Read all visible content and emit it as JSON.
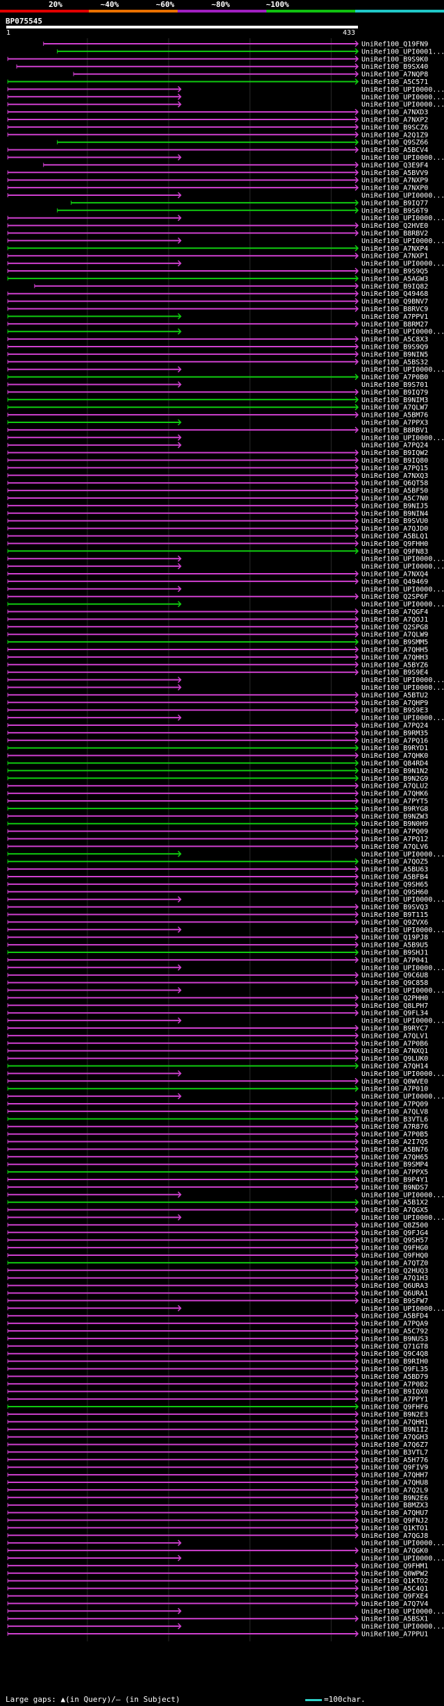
{
  "identity_scale": {
    "labels": [
      "20%",
      "~40%",
      "~60%",
      "~80%",
      "~100%"
    ],
    "segment_colors": [
      "#e00000",
      "#e87000",
      "#a020c0",
      "#10c010",
      "#20c8c8"
    ]
  },
  "query": {
    "name": "BP075545",
    "start": "1",
    "end": "433",
    "length": 433
  },
  "colors": {
    "magenta": "#d040d0",
    "green": "#10cc10",
    "grid": "#2a2a2a",
    "label": "#ffffff"
  },
  "hits": [
    {
      "id": "UniRef100_Q19FN9",
      "s": 46,
      "e": 433,
      "c": "m"
    },
    {
      "id": "UniRef100_UPI0001...",
      "s": 63,
      "e": 433,
      "c": "g"
    },
    {
      "id": "UniRef100_B9S9K0",
      "s": 2,
      "e": 433,
      "c": "m"
    },
    {
      "id": "UniRef100_B9SX40",
      "s": 13,
      "e": 433,
      "c": "m"
    },
    {
      "id": "UniRef100_A7NQP8",
      "s": 83,
      "e": 433,
      "c": "m"
    },
    {
      "id": "UniRef100_A5C571",
      "s": 2,
      "e": 433,
      "c": "g"
    },
    {
      "id": "UniRef100_UPI0000...",
      "s": 2,
      "e": 215,
      "c": "m"
    },
    {
      "id": "UniRef100_UPI0000...",
      "s": 2,
      "e": 215,
      "c": "m"
    },
    {
      "id": "UniRef100_UPI0000...",
      "s": 2,
      "e": 215,
      "c": "m"
    },
    {
      "id": "UniRef100_A7NXD3",
      "s": 2,
      "e": 433,
      "c": "m"
    },
    {
      "id": "UniRef100_A7NXP2",
      "s": 2,
      "e": 433,
      "c": "m"
    },
    {
      "id": "UniRef100_B9SCZ6",
      "s": 2,
      "e": 433,
      "c": "m"
    },
    {
      "id": "UniRef100_A2Q1Z9",
      "s": 2,
      "e": 433,
      "c": "m"
    },
    {
      "id": "UniRef100_Q9SZ66",
      "s": 63,
      "e": 433,
      "c": "g"
    },
    {
      "id": "UniRef100_A5BCV4",
      "s": 2,
      "e": 433,
      "c": "m"
    },
    {
      "id": "UniRef100_UPI0000...",
      "s": 2,
      "e": 215,
      "c": "m"
    },
    {
      "id": "UniRef100_Q3E9F4",
      "s": 46,
      "e": 433,
      "c": "m"
    },
    {
      "id": "UniRef100_A5BVV9",
      "s": 2,
      "e": 433,
      "c": "m"
    },
    {
      "id": "UniRef100_A7NXP9",
      "s": 2,
      "e": 433,
      "c": "m"
    },
    {
      "id": "UniRef100_A7NXP0",
      "s": 2,
      "e": 433,
      "c": "m"
    },
    {
      "id": "UniRef100_UPI0000...",
      "s": 2,
      "e": 215,
      "c": "m"
    },
    {
      "id": "UniRef100_B9IQ77",
      "s": 80,
      "e": 433,
      "c": "g"
    },
    {
      "id": "UniRef100_B9S6T9",
      "s": 63,
      "e": 433,
      "c": "g"
    },
    {
      "id": "UniRef100_UPI0000...",
      "s": 2,
      "e": 215,
      "c": "m"
    },
    {
      "id": "UniRef100_Q2HVE0",
      "s": 2,
      "e": 433,
      "c": "m"
    },
    {
      "id": "UniRef100_B8RBV2",
      "s": 2,
      "e": 433,
      "c": "m"
    },
    {
      "id": "UniRef100_UPI0000...",
      "s": 2,
      "e": 215,
      "c": "m"
    },
    {
      "id": "UniRef100_A7NXP4",
      "s": 2,
      "e": 433,
      "c": "g"
    },
    {
      "id": "UniRef100_A7NXP1",
      "s": 2,
      "e": 433,
      "c": "m"
    },
    {
      "id": "UniRef100_UPI0000...",
      "s": 2,
      "e": 215,
      "c": "m"
    },
    {
      "id": "UniRef100_B9S9Q5",
      "s": 2,
      "e": 433,
      "c": "m"
    },
    {
      "id": "UniRef100_A5AGW3",
      "s": 2,
      "e": 433,
      "c": "g"
    },
    {
      "id": "UniRef100_B9IQ82",
      "s": 35,
      "e": 433,
      "c": "m"
    },
    {
      "id": "UniRef100_Q49468",
      "s": 2,
      "e": 433,
      "c": "m"
    },
    {
      "id": "UniRef100_Q9BNV7",
      "s": 2,
      "e": 433,
      "c": "m"
    },
    {
      "id": "UniRef100_B8RVC9",
      "s": 2,
      "e": 433,
      "c": "m"
    },
    {
      "id": "UniRef100_A7PPV1",
      "s": 2,
      "e": 215,
      "c": "g"
    },
    {
      "id": "UniRef100_B8RM27",
      "s": 2,
      "e": 433,
      "c": "m"
    },
    {
      "id": "UniRef100_UPI0000...",
      "s": 2,
      "e": 215,
      "c": "g"
    },
    {
      "id": "UniRef100_A5C8X3",
      "s": 2,
      "e": 433,
      "c": "m"
    },
    {
      "id": "UniRef100_B9S9Q9",
      "s": 2,
      "e": 433,
      "c": "m"
    },
    {
      "id": "UniRef100_B9NIN5",
      "s": 2,
      "e": 433,
      "c": "m"
    },
    {
      "id": "UniRef100_A5BS32",
      "s": 2,
      "e": 433,
      "c": "m"
    },
    {
      "id": "UniRef100_UPI0000...",
      "s": 2,
      "e": 215,
      "c": "m"
    },
    {
      "id": "UniRef100_A7P0B0",
      "s": 2,
      "e": 433,
      "c": "g"
    },
    {
      "id": "UniRef100_B9S701",
      "s": 2,
      "e": 215,
      "c": "m"
    },
    {
      "id": "UniRef100_B9IQ79",
      "s": 2,
      "e": 433,
      "c": "m"
    },
    {
      "id": "UniRef100_B9NIM3",
      "s": 2,
      "e": 433,
      "c": "g"
    },
    {
      "id": "UniRef100_A7QLW7",
      "s": 2,
      "e": 433,
      "c": "g"
    },
    {
      "id": "UniRef100_A5BM76",
      "s": 2,
      "e": 433,
      "c": "m"
    },
    {
      "id": "UniRef100_A7PPX3",
      "s": 2,
      "e": 215,
      "c": "g"
    },
    {
      "id": "UniRef100_B8RBV1",
      "s": 2,
      "e": 433,
      "c": "m"
    },
    {
      "id": "UniRef100_UPI0000...",
      "s": 2,
      "e": 215,
      "c": "m"
    },
    {
      "id": "UniRef100_A7PQ24",
      "s": 2,
      "e": 215,
      "c": "m"
    },
    {
      "id": "UniRef100_B9IQW2",
      "s": 2,
      "e": 433,
      "c": "m"
    },
    {
      "id": "UniRef100_B9IQ80",
      "s": 2,
      "e": 433,
      "c": "m"
    },
    {
      "id": "UniRef100_A7PQ15",
      "s": 2,
      "e": 433,
      "c": "m"
    },
    {
      "id": "UniRef100_A7NXQ3",
      "s": 2,
      "e": 433,
      "c": "m"
    },
    {
      "id": "UniRef100_Q6QT58",
      "s": 2,
      "e": 433,
      "c": "m"
    },
    {
      "id": "UniRef100_A5BF50",
      "s": 2,
      "e": 433,
      "c": "m"
    },
    {
      "id": "UniRef100_A5C7N0",
      "s": 2,
      "e": 433,
      "c": "m"
    },
    {
      "id": "UniRef100_B9NIJ5",
      "s": 2,
      "e": 433,
      "c": "m"
    },
    {
      "id": "UniRef100_B9NIN4",
      "s": 2,
      "e": 433,
      "c": "m"
    },
    {
      "id": "UniRef100_B9SVU0",
      "s": 2,
      "e": 433,
      "c": "m"
    },
    {
      "id": "UniRef100_A7QJD0",
      "s": 2,
      "e": 433,
      "c": "m"
    },
    {
      "id": "UniRef100_A5BLQ1",
      "s": 2,
      "e": 433,
      "c": "m"
    },
    {
      "id": "UniRef100_Q9FHH0",
      "s": 2,
      "e": 433,
      "c": "m"
    },
    {
      "id": "UniRef100_Q9FN83",
      "s": 2,
      "e": 433,
      "c": "g"
    },
    {
      "id": "UniRef100_UPI0000...",
      "s": 2,
      "e": 215,
      "c": "m"
    },
    {
      "id": "UniRef100_UPI0000...",
      "s": 2,
      "e": 215,
      "c": "m"
    },
    {
      "id": "UniRef100_A7NXQ4",
      "s": 2,
      "e": 433,
      "c": "m"
    },
    {
      "id": "UniRef100_Q49469",
      "s": 2,
      "e": 433,
      "c": "m"
    },
    {
      "id": "UniRef100_UPI0000...",
      "s": 2,
      "e": 215,
      "c": "m"
    },
    {
      "id": "UniRef100_Q2SP6F",
      "s": 2,
      "e": 433,
      "c": "m"
    },
    {
      "id": "UniRef100_UPI0000...",
      "s": 2,
      "e": 215,
      "c": "g"
    },
    {
      "id": "UniRef100_A7QGF4",
      "s": 2,
      "e": 433,
      "c": "m"
    },
    {
      "id": "UniRef100_A7QOJ1",
      "s": 2,
      "e": 433,
      "c": "m"
    },
    {
      "id": "UniRef100_Q2SPG8",
      "s": 2,
      "e": 433,
      "c": "m"
    },
    {
      "id": "UniRef100_A7QLW9",
      "s": 2,
      "e": 433,
      "c": "m"
    },
    {
      "id": "UniRef100_B9SMM5",
      "s": 2,
      "e": 433,
      "c": "g"
    },
    {
      "id": "UniRef100_A7QHH5",
      "s": 2,
      "e": 433,
      "c": "m"
    },
    {
      "id": "UniRef100_A7QHH3",
      "s": 2,
      "e": 433,
      "c": "m"
    },
    {
      "id": "UniRef100_A5BYZ6",
      "s": 2,
      "e": 433,
      "c": "m"
    },
    {
      "id": "UniRef100_B9S9E4",
      "s": 2,
      "e": 433,
      "c": "m"
    },
    {
      "id": "UniRef100_UPI0000...",
      "s": 2,
      "e": 215,
      "c": "m"
    },
    {
      "id": "UniRef100_UPI0000...",
      "s": 2,
      "e": 215,
      "c": "m"
    },
    {
      "id": "UniRef100_A5BTU2",
      "s": 2,
      "e": 433,
      "c": "m"
    },
    {
      "id": "UniRef100_A7QHP9",
      "s": 2,
      "e": 433,
      "c": "m"
    },
    {
      "id": "UniRef100_B9S9E3",
      "s": 2,
      "e": 433,
      "c": "m"
    },
    {
      "id": "UniRef100_UPI0000...",
      "s": 2,
      "e": 215,
      "c": "m"
    },
    {
      "id": "UniRef100_A7PQ24",
      "s": 2,
      "e": 433,
      "c": "m"
    },
    {
      "id": "UniRef100_B9RM35",
      "s": 2,
      "e": 433,
      "c": "m"
    },
    {
      "id": "UniRef100_A7PQ16",
      "s": 2,
      "e": 433,
      "c": "m"
    },
    {
      "id": "UniRef100_B9RYD1",
      "s": 2,
      "e": 433,
      "c": "g"
    },
    {
      "id": "UniRef100_A7QHK0",
      "s": 2,
      "e": 433,
      "c": "m"
    },
    {
      "id": "UniRef100_Q84RD4",
      "s": 2,
      "e": 433,
      "c": "g"
    },
    {
      "id": "UniRef100_B9N1N2",
      "s": 2,
      "e": 433,
      "c": "g"
    },
    {
      "id": "UniRef100_B9N2G9",
      "s": 2,
      "e": 433,
      "c": "g"
    },
    {
      "id": "UniRef100_A7QLU2",
      "s": 2,
      "e": 433,
      "c": "m"
    },
    {
      "id": "UniRef100_A7QHK6",
      "s": 2,
      "e": 433,
      "c": "m"
    },
    {
      "id": "UniRef100_A7PYT5",
      "s": 2,
      "e": 433,
      "c": "m"
    },
    {
      "id": "UniRef100_B9RYG8",
      "s": 2,
      "e": 433,
      "c": "g"
    },
    {
      "id": "UniRef100_B9NZW3",
      "s": 2,
      "e": 433,
      "c": "m"
    },
    {
      "id": "UniRef100_B9N0H9",
      "s": 2,
      "e": 433,
      "c": "g"
    },
    {
      "id": "UniRef100_A7PQ09",
      "s": 2,
      "e": 433,
      "c": "m"
    },
    {
      "id": "UniRef100_A7PQ12",
      "s": 2,
      "e": 433,
      "c": "m"
    },
    {
      "id": "UniRef100_A7QLV6",
      "s": 2,
      "e": 433,
      "c": "m"
    },
    {
      "id": "UniRef100_UPI0000...",
      "s": 2,
      "e": 215,
      "c": "g"
    },
    {
      "id": "UniRef100_A7QOZ5",
      "s": 2,
      "e": 433,
      "c": "g"
    },
    {
      "id": "UniRef100_A5BU63",
      "s": 2,
      "e": 433,
      "c": "m"
    },
    {
      "id": "UniRef100_A5BFB4",
      "s": 2,
      "e": 433,
      "c": "m"
    },
    {
      "id": "UniRef100_Q9SH65",
      "s": 2,
      "e": 433,
      "c": "m"
    },
    {
      "id": "UniRef100_Q9SH60",
      "s": 2,
      "e": 433,
      "c": "m"
    },
    {
      "id": "UniRef100_UPI0000...",
      "s": 2,
      "e": 215,
      "c": "m"
    },
    {
      "id": "UniRef100_B9SVQ3",
      "s": 2,
      "e": 433,
      "c": "m"
    },
    {
      "id": "UniRef100_B9T115",
      "s": 2,
      "e": 433,
      "c": "m"
    },
    {
      "id": "UniRef100_Q9ZVX6",
      "s": 2,
      "e": 433,
      "c": "m"
    },
    {
      "id": "UniRef100_UPI0000...",
      "s": 2,
      "e": 215,
      "c": "m"
    },
    {
      "id": "UniRef100_Q19PJ8",
      "s": 2,
      "e": 433,
      "c": "m"
    },
    {
      "id": "UniRef100_A5B9U5",
      "s": 2,
      "e": 433,
      "c": "m"
    },
    {
      "id": "UniRef100_B9SHJ1",
      "s": 2,
      "e": 433,
      "c": "g"
    },
    {
      "id": "UniRef100_A7P041",
      "s": 2,
      "e": 433,
      "c": "m"
    },
    {
      "id": "UniRef100_UPI0000...",
      "s": 2,
      "e": 215,
      "c": "m"
    },
    {
      "id": "UniRef100_Q9C6U8",
      "s": 2,
      "e": 433,
      "c": "m"
    },
    {
      "id": "UniRef100_Q9C858",
      "s": 2,
      "e": 433,
      "c": "m"
    },
    {
      "id": "UniRef100_UPI0000...",
      "s": 2,
      "e": 215,
      "c": "m"
    },
    {
      "id": "UniRef100_Q2PHH0",
      "s": 2,
      "e": 433,
      "c": "m"
    },
    {
      "id": "UniRef100_Q8LPH7",
      "s": 2,
      "e": 433,
      "c": "m"
    },
    {
      "id": "UniRef100_Q9FL34",
      "s": 2,
      "e": 433,
      "c": "m"
    },
    {
      "id": "UniRef100_UPI0000...",
      "s": 2,
      "e": 215,
      "c": "m"
    },
    {
      "id": "UniRef100_B9RYC7",
      "s": 2,
      "e": 433,
      "c": "m"
    },
    {
      "id": "UniRef100_A7QLV1",
      "s": 2,
      "e": 433,
      "c": "m"
    },
    {
      "id": "UniRef100_A7P0B6",
      "s": 2,
      "e": 433,
      "c": "m"
    },
    {
      "id": "UniRef100_A7NXQ1",
      "s": 2,
      "e": 433,
      "c": "m"
    },
    {
      "id": "UniRef100_Q9LUK0",
      "s": 2,
      "e": 433,
      "c": "m"
    },
    {
      "id": "UniRef100_A7QH14",
      "s": 2,
      "e": 433,
      "c": "g"
    },
    {
      "id": "UniRef100_UPI0000...",
      "s": 2,
      "e": 215,
      "c": "m"
    },
    {
      "id": "UniRef100_Q0WVE0",
      "s": 2,
      "e": 433,
      "c": "m"
    },
    {
      "id": "UniRef100_A7P010",
      "s": 2,
      "e": 433,
      "c": "g"
    },
    {
      "id": "UniRef100_UPI0000...",
      "s": 2,
      "e": 215,
      "c": "m"
    },
    {
      "id": "UniRef100_A7PQ09",
      "s": 2,
      "e": 433,
      "c": "m"
    },
    {
      "id": "UniRef100_A7QLV8",
      "s": 2,
      "e": 433,
      "c": "m"
    },
    {
      "id": "UniRef100_B3VTL6",
      "s": 2,
      "e": 433,
      "c": "g"
    },
    {
      "id": "UniRef100_A7R876",
      "s": 2,
      "e": 433,
      "c": "m"
    },
    {
      "id": "UniRef100_A7P0B5",
      "s": 2,
      "e": 433,
      "c": "m"
    },
    {
      "id": "UniRef100_A2I7Q5",
      "s": 2,
      "e": 433,
      "c": "m"
    },
    {
      "id": "UniRef100_A5BN76",
      "s": 2,
      "e": 433,
      "c": "m"
    },
    {
      "id": "UniRef100_A7QH65",
      "s": 2,
      "e": 433,
      "c": "m"
    },
    {
      "id": "UniRef100_B9SMP4",
      "s": 2,
      "e": 433,
      "c": "m"
    },
    {
      "id": "UniRef100_A7PPX5",
      "s": 2,
      "e": 433,
      "c": "g"
    },
    {
      "id": "UniRef100_B9P4Y1",
      "s": 2,
      "e": 433,
      "c": "m"
    },
    {
      "id": "UniRef100_B9NDS7",
      "s": 2,
      "e": 433,
      "c": "m"
    },
    {
      "id": "UniRef100_UPI0000...",
      "s": 2,
      "e": 215,
      "c": "m"
    },
    {
      "id": "UniRef100_A5B1X2",
      "s": 2,
      "e": 433,
      "c": "g"
    },
    {
      "id": "UniRef100_A7QGX5",
      "s": 2,
      "e": 433,
      "c": "m"
    },
    {
      "id": "UniRef100_UPI0000...",
      "s": 2,
      "e": 215,
      "c": "m"
    },
    {
      "id": "UniRef100_Q8Z500",
      "s": 2,
      "e": 433,
      "c": "m"
    },
    {
      "id": "UniRef100_Q9FJG4",
      "s": 2,
      "e": 433,
      "c": "m"
    },
    {
      "id": "UniRef100_Q9SH57",
      "s": 2,
      "e": 433,
      "c": "m"
    },
    {
      "id": "UniRef100_Q9FHG0",
      "s": 2,
      "e": 433,
      "c": "m"
    },
    {
      "id": "UniRef100_Q9FHQ0",
      "s": 2,
      "e": 433,
      "c": "m"
    },
    {
      "id": "UniRef100_A7QTZ0",
      "s": 2,
      "e": 433,
      "c": "g"
    },
    {
      "id": "UniRef100_Q2HUQ3",
      "s": 2,
      "e": 433,
      "c": "m"
    },
    {
      "id": "UniRef100_A7Q1H3",
      "s": 2,
      "e": 433,
      "c": "m"
    },
    {
      "id": "UniRef100_Q6URA3",
      "s": 2,
      "e": 433,
      "c": "m"
    },
    {
      "id": "UniRef100_Q6URA1",
      "s": 2,
      "e": 433,
      "c": "m"
    },
    {
      "id": "UniRef100_B9SFW7",
      "s": 2,
      "e": 433,
      "c": "m"
    },
    {
      "id": "UniRef100_UPI0000...",
      "s": 2,
      "e": 215,
      "c": "m"
    },
    {
      "id": "UniRef100_A5BFD4",
      "s": 2,
      "e": 433,
      "c": "m"
    },
    {
      "id": "UniRef100_A7PQA9",
      "s": 2,
      "e": 433,
      "c": "m"
    },
    {
      "id": "UniRef100_A5C792",
      "s": 2,
      "e": 433,
      "c": "m"
    },
    {
      "id": "UniRef100_B9NUS3",
      "s": 2,
      "e": 433,
      "c": "m"
    },
    {
      "id": "UniRef100_Q71GT8",
      "s": 2,
      "e": 433,
      "c": "m"
    },
    {
      "id": "UniRef100_Q9C4Q8",
      "s": 2,
      "e": 433,
      "c": "m"
    },
    {
      "id": "UniRef100_B9RIH0",
      "s": 2,
      "e": 433,
      "c": "m"
    },
    {
      "id": "UniRef100_Q9FL35",
      "s": 2,
      "e": 433,
      "c": "m"
    },
    {
      "id": "UniRef100_A5BD79",
      "s": 2,
      "e": 433,
      "c": "m"
    },
    {
      "id": "UniRef100_A7P0B2",
      "s": 2,
      "e": 433,
      "c": "m"
    },
    {
      "id": "UniRef100_B9IQX0",
      "s": 2,
      "e": 433,
      "c": "m"
    },
    {
      "id": "UniRef100_A7PPY1",
      "s": 2,
      "e": 433,
      "c": "m"
    },
    {
      "id": "UniRef100_Q9FHF6",
      "s": 2,
      "e": 433,
      "c": "g"
    },
    {
      "id": "UniRef100_B9N2E3",
      "s": 2,
      "e": 433,
      "c": "m"
    },
    {
      "id": "UniRef100_A7QHH1",
      "s": 2,
      "e": 433,
      "c": "m"
    },
    {
      "id": "UniRef100_B9N1I2",
      "s": 2,
      "e": 433,
      "c": "m"
    },
    {
      "id": "UniRef100_A7QGH3",
      "s": 2,
      "e": 433,
      "c": "m"
    },
    {
      "id": "UniRef100_A7Q6Z7",
      "s": 2,
      "e": 433,
      "c": "m"
    },
    {
      "id": "UniRef100_B3VTL7",
      "s": 2,
      "e": 433,
      "c": "m"
    },
    {
      "id": "UniRef100_A5H776",
      "s": 2,
      "e": 433,
      "c": "m"
    },
    {
      "id": "UniRef100_Q9FIV9",
      "s": 2,
      "e": 433,
      "c": "m"
    },
    {
      "id": "UniRef100_A7QHH7",
      "s": 2,
      "e": 433,
      "c": "m"
    },
    {
      "id": "UniRef100_A7QHU8",
      "s": 2,
      "e": 433,
      "c": "m"
    },
    {
      "id": "UniRef100_A7Q2L9",
      "s": 2,
      "e": 433,
      "c": "m"
    },
    {
      "id": "UniRef100_B9N2E6",
      "s": 2,
      "e": 433,
      "c": "m"
    },
    {
      "id": "UniRef100_B8MZX3",
      "s": 2,
      "e": 433,
      "c": "m"
    },
    {
      "id": "UniRef100_A7QHU7",
      "s": 2,
      "e": 433,
      "c": "m"
    },
    {
      "id": "UniRef100_Q9FNJ2",
      "s": 2,
      "e": 433,
      "c": "m"
    },
    {
      "id": "UniRef100_Q1KTO1",
      "s": 2,
      "e": 433,
      "c": "m"
    },
    {
      "id": "UniRef100_A7QGJ8",
      "s": 2,
      "e": 433,
      "c": "m"
    },
    {
      "id": "UniRef100_UPI0000...",
      "s": 2,
      "e": 215,
      "c": "m"
    },
    {
      "id": "UniRef100_A7QGK0",
      "s": 2,
      "e": 433,
      "c": "m"
    },
    {
      "id": "UniRef100_UPI0000...",
      "s": 2,
      "e": 215,
      "c": "m"
    },
    {
      "id": "UniRef100_Q9FHM1",
      "s": 2,
      "e": 433,
      "c": "m"
    },
    {
      "id": "UniRef100_Q0WPW2",
      "s": 2,
      "e": 433,
      "c": "m"
    },
    {
      "id": "UniRef100_Q1KTO2",
      "s": 2,
      "e": 433,
      "c": "m"
    },
    {
      "id": "UniRef100_A5C4Q1",
      "s": 2,
      "e": 433,
      "c": "m"
    },
    {
      "id": "UniRef100_Q9FXE4",
      "s": 2,
      "e": 433,
      "c": "m"
    },
    {
      "id": "UniRef100_A7Q7V4",
      "s": 2,
      "e": 433,
      "c": "m"
    },
    {
      "id": "UniRef100_UPI0000...",
      "s": 2,
      "e": 215,
      "c": "m"
    },
    {
      "id": "UniRef100_A5BSX1",
      "s": 2,
      "e": 433,
      "c": "m"
    },
    {
      "id": "UniRef100_UPI0000...",
      "s": 2,
      "e": 215,
      "c": "m"
    },
    {
      "id": "UniRef100_A7PPU1",
      "s": 2,
      "e": 433,
      "c": "m"
    }
  ],
  "footer": {
    "legend": "Large gaps: ▲(in Query)/— (in Subject)",
    "scale": "=100char."
  }
}
